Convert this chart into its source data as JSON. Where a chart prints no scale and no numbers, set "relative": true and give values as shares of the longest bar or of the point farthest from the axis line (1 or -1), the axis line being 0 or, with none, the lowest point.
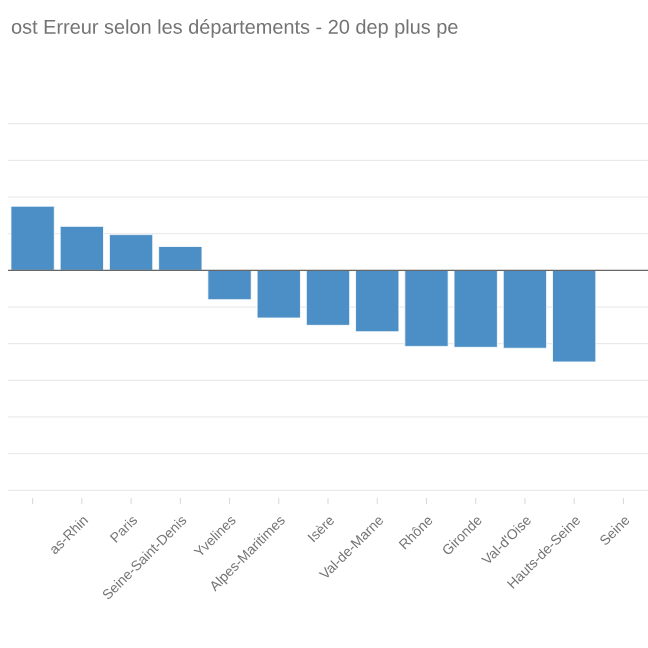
{
  "chart_data": {
    "type": "bar",
    "title": "ost Erreur selon les départements - 20 dep plus pe",
    "categories": [
      null,
      "as-Rhin",
      "Paris",
      "Seine-Saint-Denis",
      "Yvelines",
      "Alpes-Maritimes",
      "Isère",
      "Val-de-Marne",
      "Rhône",
      "Gironde",
      "Val-d'Oise",
      "Hauts-de-Seine",
      "Seine"
    ],
    "values": [
      0.7,
      0.48,
      0.39,
      0.26,
      -0.32,
      -0.52,
      -0.6,
      -0.67,
      -0.83,
      -0.84,
      -0.85,
      -1.0,
      null
    ],
    "color": "#4b8fc6",
    "relative": true,
    "grid": "y"
  }
}
